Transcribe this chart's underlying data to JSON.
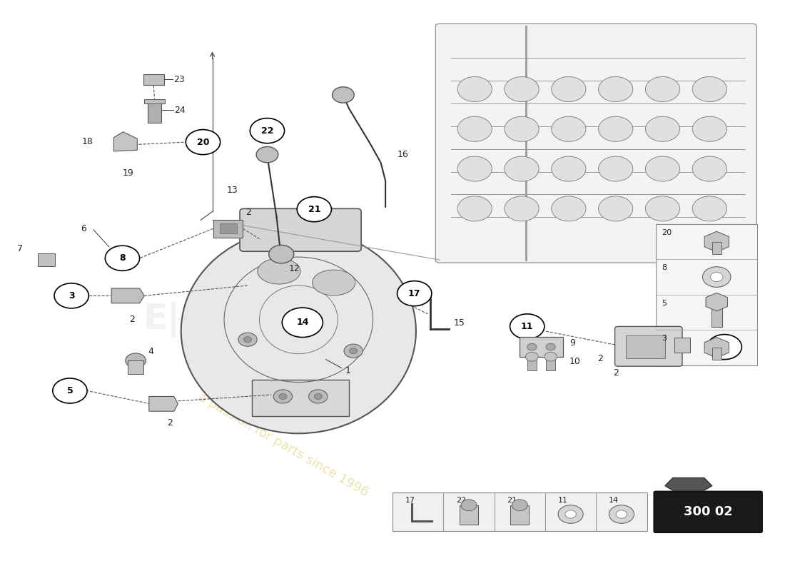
{
  "bg_color": "#ffffff",
  "fig_width": 11.0,
  "fig_height": 8.0,
  "watermark_text": "a passion for parts since 1996",
  "part_code": "300 02"
}
